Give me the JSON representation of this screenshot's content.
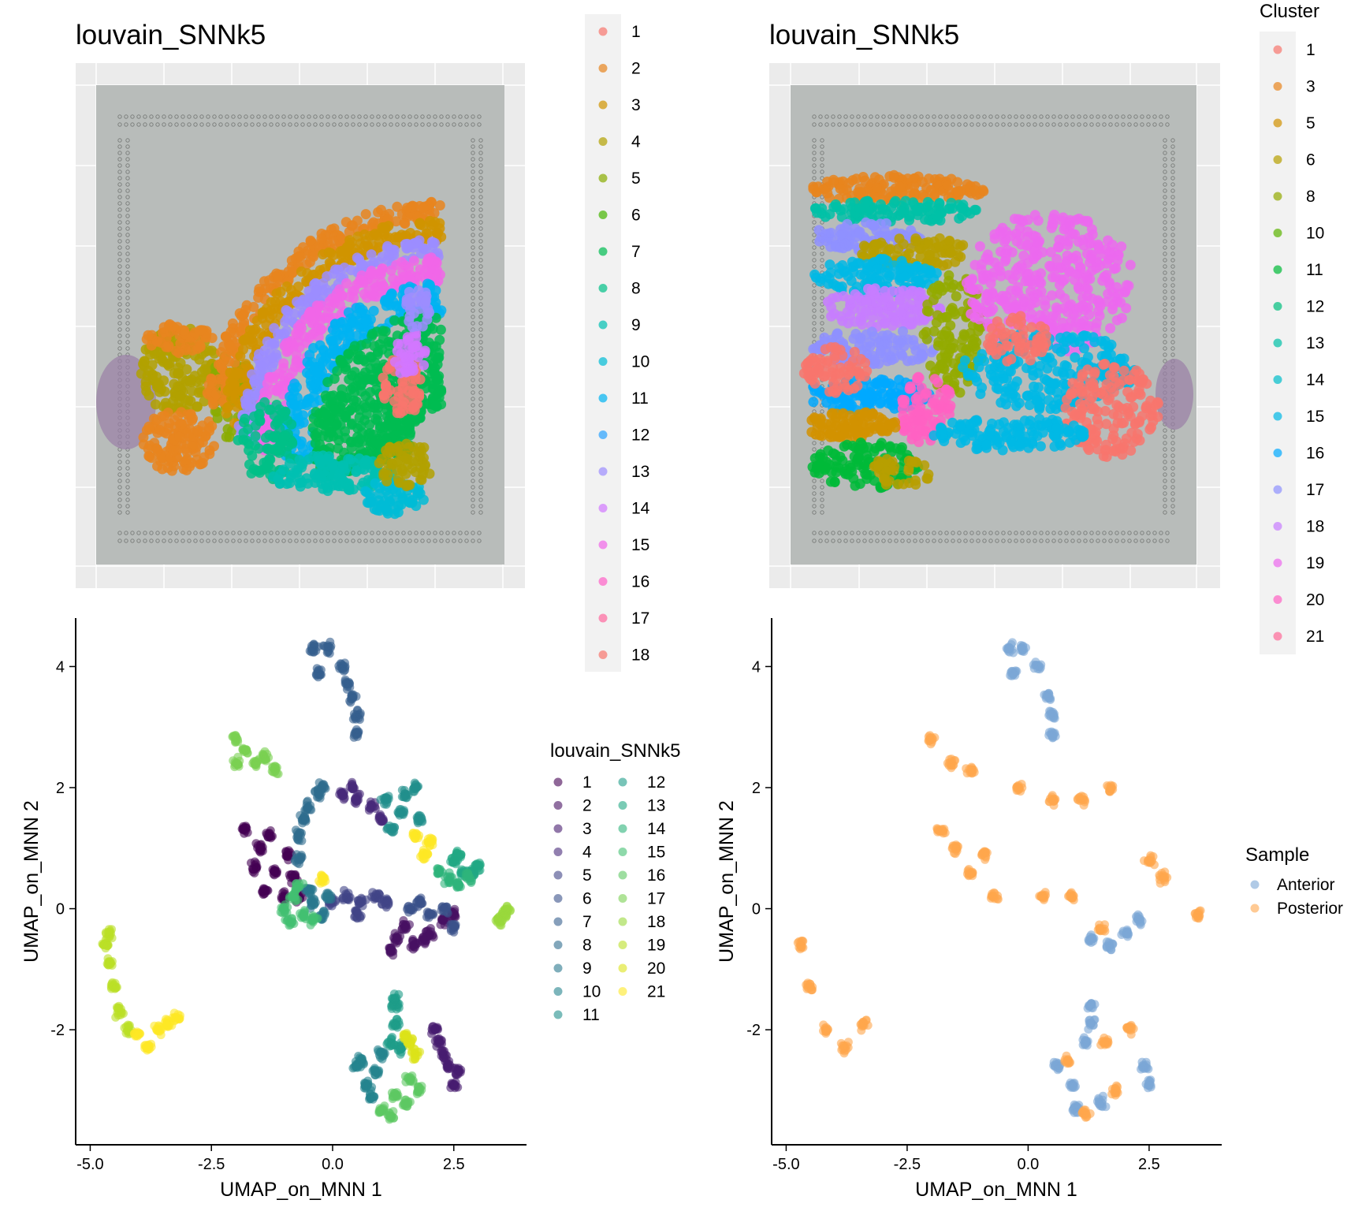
{
  "panels": {
    "top_left": {
      "title": "louvain_SNNk5",
      "legend": {
        "title": "",
        "labels": [
          "1",
          "2",
          "3",
          "4",
          "5",
          "6",
          "7",
          "8",
          "9",
          "10",
          "11",
          "12",
          "13",
          "14",
          "15",
          "16",
          "17",
          "18"
        ]
      }
    },
    "top_right": {
      "title": "louvain_SNNk5",
      "legend": {
        "title": "Cluster",
        "labels": [
          "1",
          "3",
          "5",
          "6",
          "8",
          "10",
          "11",
          "12",
          "13",
          "14",
          "15",
          "16",
          "17",
          "18",
          "19",
          "20",
          "21"
        ]
      }
    },
    "bottom_left": {
      "xlabel": "UMAP_on_MNN 1",
      "ylabel": "UMAP_on_MNN 2",
      "xticks": [
        "-5.0",
        "-2.5",
        "0.0",
        "2.5"
      ],
      "yticks": [
        "4",
        "2",
        "0",
        "-2"
      ],
      "legend": {
        "title": "louvain_SNNk5",
        "labels": [
          "1",
          "2",
          "3",
          "4",
          "5",
          "6",
          "7",
          "8",
          "9",
          "10",
          "11",
          "12",
          "13",
          "14",
          "15",
          "16",
          "17",
          "18",
          "19",
          "20",
          "21"
        ]
      }
    },
    "bottom_right": {
      "xlabel": "UMAP_on_MNN 1",
      "ylabel": "UMAP_on_MNN 2",
      "xticks": [
        "-5.0",
        "-2.5",
        "0.0",
        "2.5"
      ],
      "yticks": [
        "4",
        "2",
        "0",
        "-2"
      ],
      "legend": {
        "title": "Sample",
        "labels": [
          "Anterior",
          "Posterior"
        ]
      }
    }
  },
  "colors": {
    "hue18": [
      "#F8766D",
      "#E7851E",
      "#D09400",
      "#B2A100",
      "#89AC00",
      "#45B500",
      "#00BC51",
      "#00C087",
      "#00C0B2",
      "#00BCD6",
      "#00B3F2",
      "#29A3FF",
      "#9C8DFF",
      "#D277FF",
      "#F166E8",
      "#FF61C7",
      "#FF689E",
      "#F8766D"
    ],
    "hue17": [
      "#F8766D",
      "#E8851D",
      "#D29200",
      "#B79F00",
      "#93AA00",
      "#5BB300",
      "#00BA38",
      "#00BF7D",
      "#00C1A7",
      "#00BECB",
      "#00B8E5",
      "#00A9FF",
      "#8F91FF",
      "#C77CFF",
      "#EC68EE",
      "#FF61C3",
      "#FF6A98"
    ],
    "viridis21": [
      "#440154",
      "#471063",
      "#481D6F",
      "#472A7A",
      "#414487",
      "#3B528B",
      "#355F8D",
      "#2F6C8E",
      "#2A788E",
      "#25838E",
      "#21908C",
      "#1E9C89",
      "#22A884",
      "#2FB47C",
      "#43BF71",
      "#5DC863",
      "#7AD151",
      "#9AD93C",
      "#BBDF27",
      "#DCE319",
      "#FDE725"
    ],
    "sample": [
      "#7BA6D6",
      "#FFA64D"
    ],
    "tissue_bg": "#B8BCBA",
    "panel_bg": "#EBEBEB",
    "legend_bg": "#F2F2F2"
  },
  "chart_data": [
    {
      "type": "scatter",
      "subtype": "spatial-image",
      "title": "louvain_SNNk5",
      "series_names": [
        "1",
        "2",
        "3",
        "4",
        "5",
        "6",
        "7",
        "8",
        "9",
        "10",
        "11",
        "12",
        "13",
        "14",
        "15",
        "16",
        "17",
        "18"
      ],
      "grid": true
    },
    {
      "type": "scatter",
      "subtype": "spatial-image",
      "title": "louvain_SNNk5",
      "legend_title": "Cluster",
      "series_names": [
        "1",
        "3",
        "5",
        "6",
        "8",
        "10",
        "11",
        "12",
        "13",
        "14",
        "15",
        "16",
        "17",
        "18",
        "19",
        "20",
        "21"
      ],
      "grid": true
    },
    {
      "type": "scatter",
      "xlabel": "UMAP_on_MNN 1",
      "ylabel": "UMAP_on_MNN 2",
      "xlim": [
        -5.3,
        4.0
      ],
      "ylim": [
        -3.9,
        4.8
      ],
      "legend_title": "louvain_SNNk5",
      "clusters": [
        {
          "name": "1",
          "points": [
            [
              -1.8,
              1.3
            ],
            [
              -1.5,
              1.0
            ],
            [
              -1.2,
              0.6
            ],
            [
              -1.4,
              0.3
            ],
            [
              -0.9,
              0.9
            ],
            [
              -1.0,
              0.2
            ],
            [
              -1.6,
              0.7
            ],
            [
              -0.8,
              0.5
            ],
            [
              -1.3,
              1.2
            ],
            [
              -0.7,
              0.2
            ]
          ]
        },
        {
          "name": "2",
          "points": [
            [
              1.3,
              -0.5
            ],
            [
              1.7,
              -0.6
            ],
            [
              2.0,
              -0.4
            ],
            [
              1.5,
              -0.3
            ],
            [
              2.3,
              -0.2
            ],
            [
              1.2,
              -0.7
            ],
            [
              2.5,
              -0.1
            ],
            [
              1.9,
              -0.5
            ]
          ]
        },
        {
          "name": "3",
          "points": [
            [
              2.4,
              -2.6
            ],
            [
              2.6,
              -2.7
            ],
            [
              2.3,
              -2.4
            ],
            [
              2.2,
              -2.2
            ],
            [
              2.5,
              -2.9
            ],
            [
              2.1,
              -2.0
            ]
          ]
        },
        {
          "name": "4",
          "points": [
            [
              0.2,
              1.9
            ],
            [
              0.5,
              1.8
            ],
            [
              0.8,
              1.7
            ],
            [
              1.0,
              1.5
            ],
            [
              0.4,
              2.0
            ]
          ]
        },
        {
          "name": "5",
          "points": [
            [
              0.3,
              0.2
            ],
            [
              0.6,
              0.1
            ],
            [
              0.9,
              0.2
            ],
            [
              1.1,
              0.1
            ],
            [
              0.0,
              0.1
            ],
            [
              0.5,
              -0.1
            ]
          ]
        },
        {
          "name": "6",
          "points": [
            [
              1.6,
              0.0
            ],
            [
              2.0,
              -0.1
            ],
            [
              2.3,
              0.0
            ],
            [
              2.5,
              -0.3
            ],
            [
              1.8,
              0.1
            ]
          ]
        },
        {
          "name": "7",
          "points": [
            [
              -0.4,
              4.3
            ],
            [
              -0.1,
              4.3
            ],
            [
              0.2,
              4.0
            ],
            [
              0.4,
              3.5
            ],
            [
              0.5,
              3.2
            ],
            [
              -0.3,
              3.9
            ],
            [
              0.3,
              3.7
            ],
            [
              0.5,
              2.9
            ]
          ]
        },
        {
          "name": "8",
          "points": [
            [
              -0.2,
              2.0
            ],
            [
              -0.5,
              1.7
            ],
            [
              -0.7,
              1.2
            ],
            [
              -0.7,
              0.8
            ],
            [
              -0.3,
              1.9
            ],
            [
              -0.6,
              1.5
            ]
          ]
        },
        {
          "name": "9",
          "points": [
            [
              -0.4,
              0.1
            ],
            [
              -0.2,
              -0.1
            ],
            [
              -0.5,
              0.3
            ],
            [
              -0.1,
              0.2
            ]
          ]
        },
        {
          "name": "10",
          "points": [
            [
              0.6,
              -2.5
            ],
            [
              0.9,
              -2.7
            ],
            [
              0.7,
              -2.9
            ],
            [
              1.0,
              -2.4
            ],
            [
              0.8,
              -3.1
            ],
            [
              0.5,
              -2.6
            ]
          ]
        },
        {
          "name": "11",
          "points": [
            [
              1.1,
              1.8
            ],
            [
              1.5,
              1.9
            ],
            [
              1.7,
              2.0
            ],
            [
              1.4,
              1.6
            ],
            [
              1.8,
              1.5
            ],
            [
              1.2,
              1.3
            ]
          ]
        },
        {
          "name": "12",
          "points": [
            [
              1.3,
              -1.6
            ],
            [
              1.3,
              -1.9
            ],
            [
              1.2,
              -2.2
            ],
            [
              1.4,
              -2.3
            ],
            [
              1.3,
              -1.5
            ]
          ]
        },
        {
          "name": "13",
          "points": [
            [
              2.5,
              0.8
            ],
            [
              2.7,
              0.6
            ],
            [
              2.9,
              0.6
            ],
            [
              3.0,
              0.7
            ],
            [
              2.6,
              0.9
            ]
          ]
        },
        {
          "name": "14",
          "points": [
            [
              2.2,
              0.6
            ],
            [
              2.4,
              0.5
            ],
            [
              2.6,
              0.4
            ],
            [
              2.8,
              0.5
            ]
          ]
        },
        {
          "name": "15",
          "points": [
            [
              -0.8,
              0.2
            ],
            [
              -0.6,
              -0.1
            ],
            [
              -0.4,
              -0.2
            ],
            [
              -1.0,
              0.0
            ],
            [
              -0.7,
              0.4
            ],
            [
              -0.9,
              -0.2
            ]
          ]
        },
        {
          "name": "16",
          "points": [
            [
              1.0,
              -3.3
            ],
            [
              1.2,
              -3.4
            ],
            [
              1.5,
              -3.2
            ],
            [
              1.8,
              -3.0
            ],
            [
              1.3,
              -3.1
            ],
            [
              1.6,
              -2.8
            ]
          ]
        },
        {
          "name": "17",
          "points": [
            [
              -2.0,
              2.8
            ],
            [
              -1.8,
              2.6
            ],
            [
              -1.6,
              2.4
            ],
            [
              -1.4,
              2.5
            ],
            [
              -1.2,
              2.3
            ],
            [
              -2.0,
              2.4
            ]
          ]
        },
        {
          "name": "18",
          "points": [
            [
              3.5,
              -0.1
            ],
            [
              3.6,
              0.0
            ],
            [
              3.45,
              -0.2
            ]
          ]
        },
        {
          "name": "19",
          "points": [
            [
              -4.7,
              -0.6
            ],
            [
              -4.6,
              -0.9
            ],
            [
              -4.5,
              -1.3
            ],
            [
              -4.4,
              -1.7
            ],
            [
              -4.2,
              -2.0
            ],
            [
              -4.6,
              -0.4
            ]
          ]
        },
        {
          "name": "20",
          "points": [
            [
              1.6,
              -2.2
            ],
            [
              1.7,
              -2.4
            ],
            [
              1.5,
              -2.1
            ]
          ]
        },
        {
          "name": "21",
          "points": [
            [
              -4.0,
              -2.1
            ],
            [
              -3.8,
              -2.3
            ],
            [
              -3.6,
              -2.0
            ],
            [
              -3.4,
              -1.9
            ],
            [
              -3.2,
              -1.8
            ],
            [
              1.9,
              0.9
            ],
            [
              1.7,
              1.2
            ],
            [
              2.0,
              1.1
            ],
            [
              -0.2,
              0.5
            ]
          ]
        }
      ]
    },
    {
      "type": "scatter",
      "xlabel": "UMAP_on_MNN 1",
      "ylabel": "UMAP_on_MNN 2",
      "xlim": [
        -5.3,
        4.0
      ],
      "ylim": [
        -3.9,
        4.8
      ],
      "legend_title": "Sample",
      "series": [
        {
          "name": "Anterior",
          "points": [
            [
              -0.4,
              4.3
            ],
            [
              -0.1,
              4.3
            ],
            [
              0.2,
              4.0
            ],
            [
              0.4,
              3.5
            ],
            [
              0.5,
              3.2
            ],
            [
              -0.3,
              3.9
            ],
            [
              0.5,
              2.9
            ],
            [
              1.3,
              -0.5
            ],
            [
              1.7,
              -0.6
            ],
            [
              2.0,
              -0.4
            ],
            [
              2.3,
              -0.2
            ],
            [
              1.3,
              -1.6
            ],
            [
              1.3,
              -1.9
            ],
            [
              1.2,
              -2.2
            ],
            [
              1.0,
              -3.3
            ],
            [
              1.5,
              -3.2
            ],
            [
              2.5,
              -2.9
            ],
            [
              0.6,
              -2.6
            ],
            [
              0.9,
              -2.9
            ],
            [
              2.4,
              -2.6
            ]
          ]
        },
        {
          "name": "Posterior",
          "points": [
            [
              -1.8,
              1.3
            ],
            [
              -1.5,
              1.0
            ],
            [
              -1.2,
              0.6
            ],
            [
              -0.9,
              0.9
            ],
            [
              -0.7,
              0.2
            ],
            [
              -0.2,
              2.0
            ],
            [
              0.5,
              1.8
            ],
            [
              1.1,
              1.8
            ],
            [
              1.7,
              2.0
            ],
            [
              0.3,
              0.2
            ],
            [
              0.9,
              0.2
            ],
            [
              1.5,
              -0.3
            ],
            [
              2.5,
              0.8
            ],
            [
              2.8,
              0.5
            ],
            [
              3.5,
              -0.1
            ],
            [
              -2.0,
              2.8
            ],
            [
              -1.6,
              2.4
            ],
            [
              -1.2,
              2.3
            ],
            [
              -4.7,
              -0.6
            ],
            [
              -4.5,
              -1.3
            ],
            [
              -4.2,
              -2.0
            ],
            [
              -3.8,
              -2.3
            ],
            [
              -3.4,
              -1.9
            ],
            [
              0.8,
              -2.5
            ],
            [
              1.6,
              -2.2
            ],
            [
              2.1,
              -2.0
            ],
            [
              1.8,
              -3.0
            ],
            [
              1.2,
              -3.4
            ]
          ]
        }
      ]
    }
  ]
}
